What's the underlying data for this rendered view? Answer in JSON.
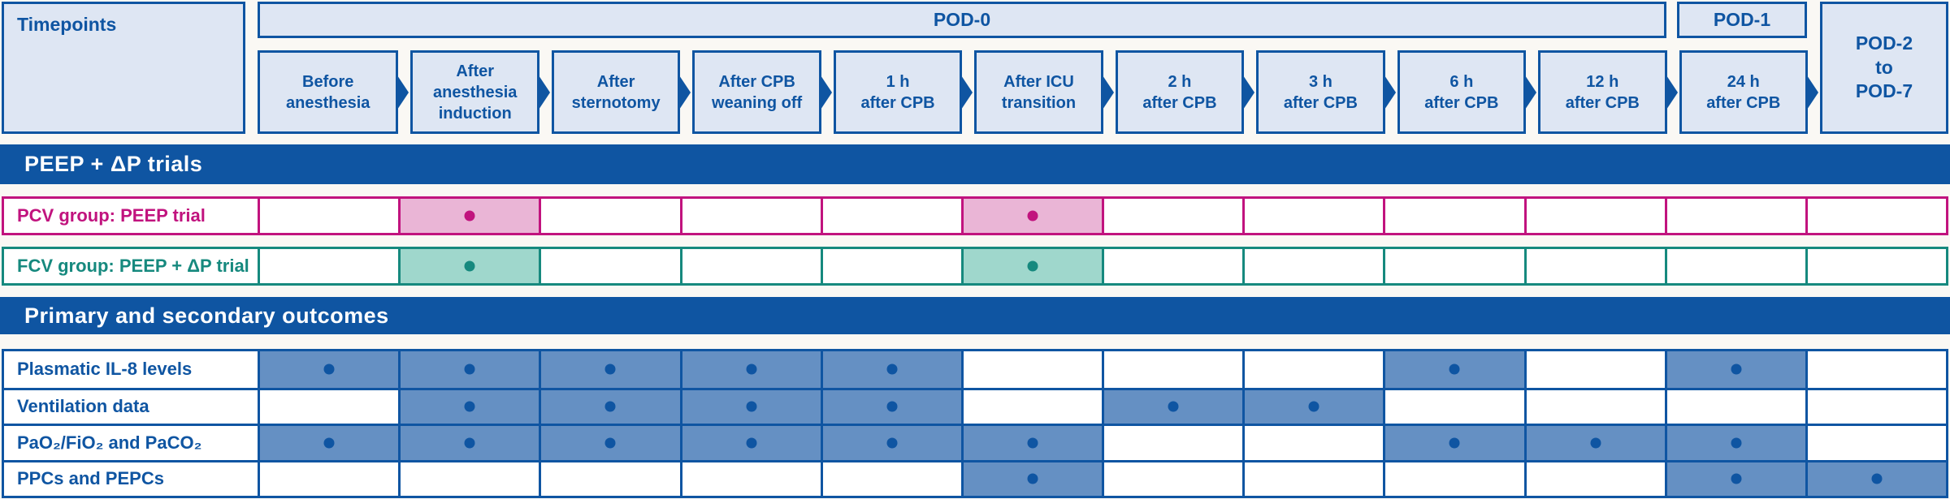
{
  "colors": {
    "dark_blue": "#0f55a2",
    "light_blue_fill": "#dee6f3",
    "steel_blue_fill": "#6590c3",
    "magenta": "#c1137e",
    "pink_fill": "#eab5d6",
    "teal": "#16897e",
    "teal_fill": "#9fd7cc",
    "background": "#faf8f4",
    "banner_text": "#ffffff"
  },
  "header": {
    "corner_label": "Timepoints",
    "pod0": "POD-0",
    "pod1": "POD-1",
    "pod2": "POD-2\nto\nPOD-7",
    "timepoints": [
      "Before\nanesthesia",
      "After\nanesthesia\ninduction",
      "After\nsternotomy",
      "After CPB\nweaning off",
      "1 h\nafter CPB",
      "After ICU\ntransition",
      "2 h\nafter CPB",
      "3 h\nafter CPB",
      "6 h\nafter CPB",
      "12 h\nafter CPB",
      "24 h\nafter CPB"
    ],
    "column_order_note": "cells arrays below follow the 11 timepoints above plus final POD-2 to POD-7 column"
  },
  "trials_section": {
    "title": "PEEP + ΔP trials",
    "rows": [
      {
        "label": "PCV group: PEEP trial",
        "theme": "pcv",
        "cells": [
          0,
          1,
          0,
          0,
          0,
          1,
          0,
          0,
          0,
          0,
          0,
          0
        ]
      },
      {
        "label": "FCV group: PEEP + ΔP trial",
        "theme": "fcv",
        "cells": [
          0,
          1,
          0,
          0,
          0,
          1,
          0,
          0,
          0,
          0,
          0,
          0
        ]
      }
    ]
  },
  "outcomes_section": {
    "title": "Primary and secondary outcomes",
    "rows": [
      {
        "label": "Plasmatic IL-8 levels",
        "cells": [
          1,
          1,
          1,
          1,
          1,
          0,
          0,
          0,
          1,
          0,
          1,
          0
        ]
      },
      {
        "label": "Ventilation data",
        "cells": [
          0,
          1,
          1,
          1,
          1,
          0,
          1,
          1,
          0,
          0,
          0,
          0
        ]
      },
      {
        "label": "PaO₂/FiO₂ and PaCO₂",
        "cells": [
          1,
          1,
          1,
          1,
          1,
          1,
          0,
          0,
          1,
          1,
          1,
          0
        ]
      },
      {
        "label": "PPCs and PEPCs",
        "cells": [
          0,
          0,
          0,
          0,
          0,
          1,
          0,
          0,
          0,
          0,
          1,
          1
        ]
      }
    ]
  }
}
